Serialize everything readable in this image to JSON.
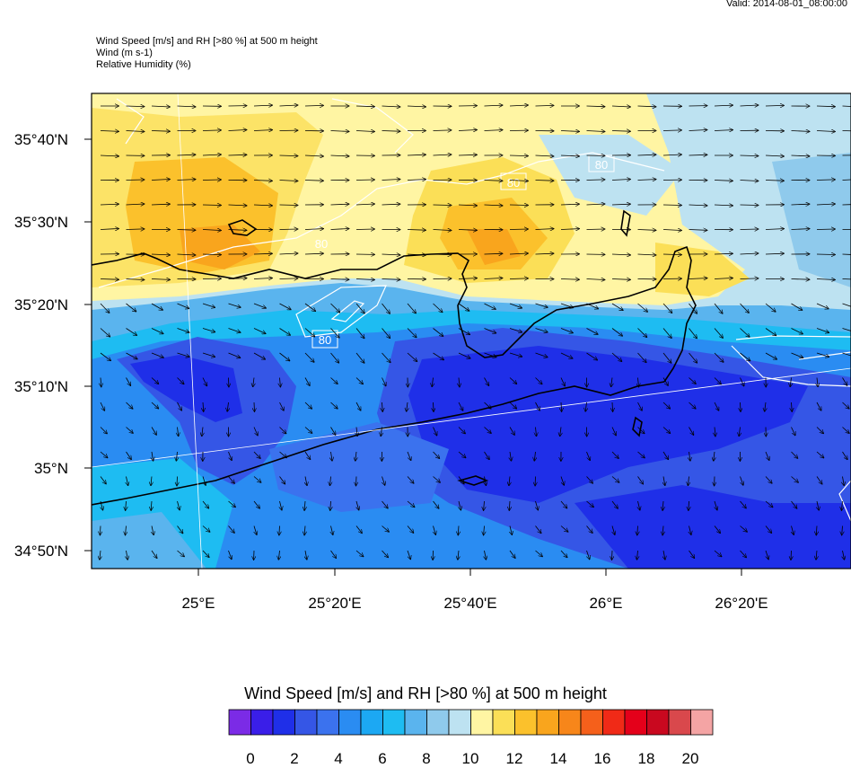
{
  "valid_time": "Valid: 2014-08-01_08:00:00",
  "header": {
    "line1": "Wind Speed [m/s] and RH [>80 %] at 500 m height",
    "line2": "Wind   (m s-1)",
    "line3": "Relative Humidity   (%)"
  },
  "lat_labels": [
    "35°40'N",
    "35°30'N",
    "35°20'N",
    "35°10'N",
    "35°N",
    "34°50'N"
  ],
  "lon_labels": [
    "25°E",
    "25°20'E",
    "25°40'E",
    "26°E",
    "26°20'E"
  ],
  "contour_labels": [
    "80",
    "80",
    "80",
    "80"
  ],
  "colorbar": {
    "title": "Wind Speed [m/s] and RH [>80 %] at 500 m height",
    "colors": [
      "#7b2be6",
      "#3a1ee8",
      "#1f2fe8",
      "#3556e6",
      "#3b72ee",
      "#2a8cf2",
      "#1ca8f3",
      "#1ebcf2",
      "#5ab4ee",
      "#8fcaec",
      "#bde2f1",
      "#fff5a3",
      "#fbdf57",
      "#fbc12c",
      "#f9a51d",
      "#f7861a",
      "#f5601b",
      "#f02a17",
      "#e4001a",
      "#c9081f",
      "#d9484c",
      "#f4a4a4"
    ],
    "ticks": [
      "0",
      "2",
      "4",
      "6",
      "8",
      "10",
      "12",
      "14",
      "16",
      "18",
      "20"
    ]
  },
  "colors": {
    "strong_wind": "#f9a51d",
    "moderate_wind": "#fff5a3",
    "light_wind": "#bde2f1",
    "calm": "#3556e6"
  }
}
